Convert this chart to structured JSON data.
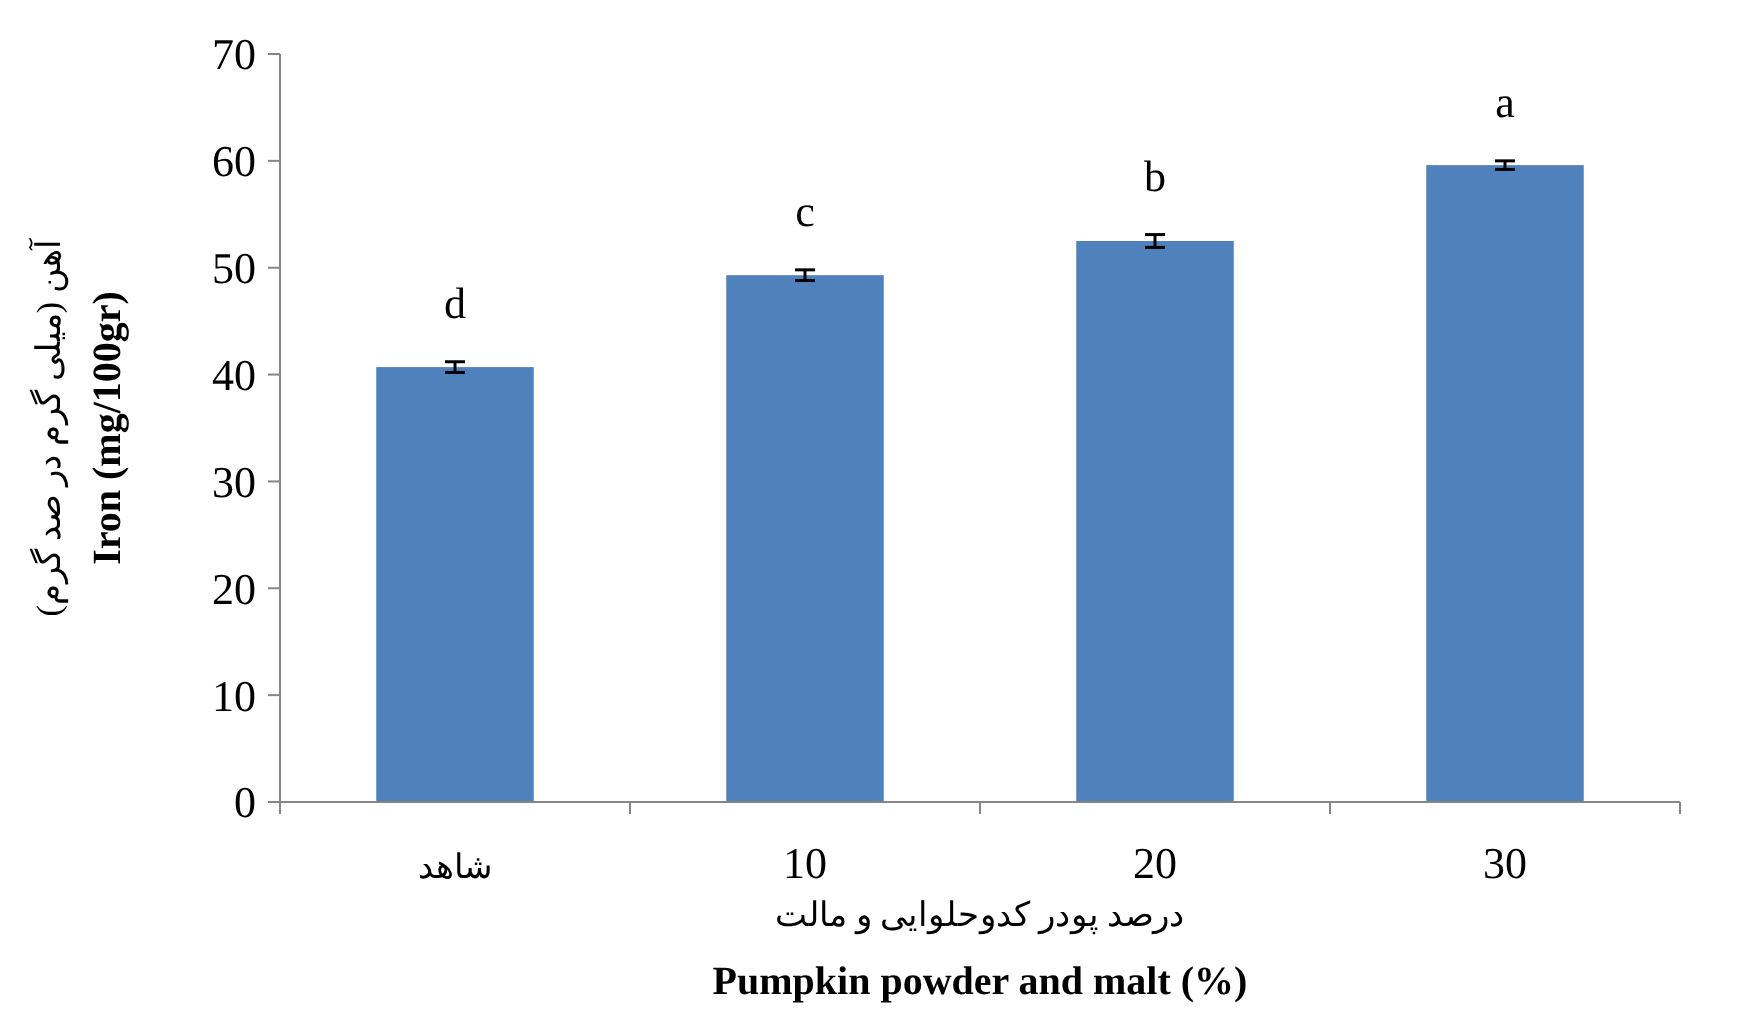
{
  "chart_data": {
    "type": "bar",
    "categories": [
      "شاهد",
      "10",
      "20",
      "30"
    ],
    "values": [
      40.7,
      49.3,
      52.5,
      59.6
    ],
    "errors": [
      0.5,
      0.5,
      0.6,
      0.4
    ],
    "color": "#4f81bd",
    "xlabel": "درصد پودر کدوحلوایی و مالت\nPumpkin powder and malt (%)",
    "ylabel": "آهن (میلی گرم در صد گرم)\nIron (mg/100gr)",
    "ylim": [
      0,
      70
    ],
    "yticks": [
      0,
      10,
      20,
      30,
      40,
      50,
      60,
      70
    ],
    "grid": false,
    "annotations": [
      "d",
      "c",
      "b",
      "a"
    ]
  }
}
